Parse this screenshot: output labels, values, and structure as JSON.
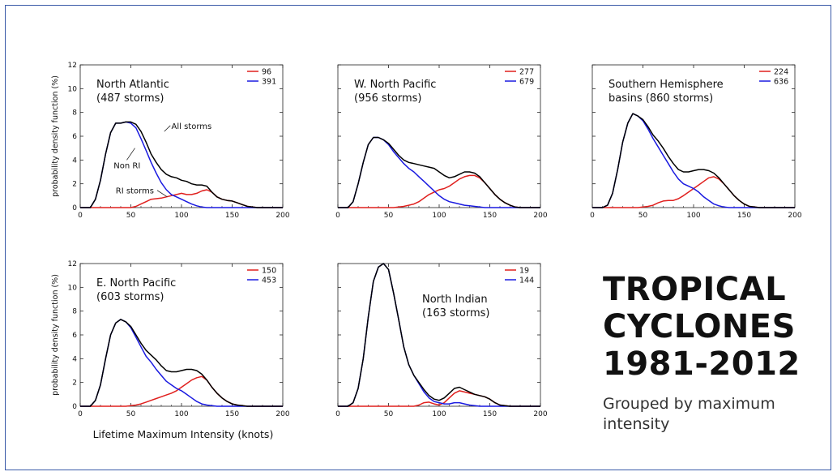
{
  "page": {
    "title_lines": [
      "TROPICAL",
      "CYCLONES",
      "1981-2012"
    ],
    "subtitle": "Grouped by maximum intensity",
    "shared_xlabel": "Lifetime Maximum Intensity (knots)",
    "shared_ylabel": "probability density function (%)"
  },
  "colors": {
    "all": "#000000",
    "ri": "#e0201e",
    "nonri": "#1a1ae0",
    "frame": "#3a5aa8"
  },
  "chart_data": [
    {
      "type": "line",
      "basin": "North Atlantic",
      "storms": "(487 storms)",
      "xlim": [
        0,
        200
      ],
      "ylim": [
        0,
        12
      ],
      "xticks": [
        0,
        50,
        100,
        150,
        200
      ],
      "yticks": [
        0,
        2,
        4,
        6,
        8,
        10,
        12
      ],
      "legend": [
        {
          "key": "ri",
          "label": "96"
        },
        {
          "key": "nonri",
          "label": "391"
        }
      ],
      "annotations": [
        "All storms",
        "Non RI",
        "RI storms"
      ],
      "x": [
        0,
        10,
        15,
        20,
        25,
        30,
        35,
        40,
        45,
        50,
        55,
        60,
        65,
        70,
        75,
        80,
        85,
        90,
        95,
        100,
        105,
        110,
        115,
        120,
        125,
        130,
        135,
        140,
        145,
        150,
        155,
        160,
        165,
        170,
        175,
        180,
        200
      ],
      "series": [
        {
          "key": "all",
          "values": [
            0,
            0,
            0.7,
            2.3,
            4.5,
            6.3,
            7.1,
            7.1,
            7.2,
            7.2,
            7.0,
            6.4,
            5.5,
            4.5,
            3.8,
            3.2,
            2.8,
            2.6,
            2.5,
            2.3,
            2.2,
            2.0,
            1.9,
            1.9,
            1.8,
            1.3,
            0.9,
            0.7,
            0.6,
            0.55,
            0.4,
            0.25,
            0.1,
            0.05,
            0,
            0,
            0
          ]
        },
        {
          "key": "nonri",
          "values": [
            0,
            0,
            0.7,
            2.3,
            4.5,
            6.3,
            7.1,
            7.1,
            7.2,
            7.1,
            6.7,
            5.8,
            4.8,
            3.8,
            2.9,
            2.1,
            1.5,
            1.1,
            0.9,
            0.7,
            0.5,
            0.3,
            0.15,
            0.05,
            0,
            0,
            0,
            0,
            0,
            0,
            0,
            0,
            0,
            0,
            0,
            0,
            0
          ]
        },
        {
          "key": "ri",
          "values": [
            0,
            0,
            0,
            0,
            0,
            0,
            0,
            0,
            0,
            0,
            0.1,
            0.3,
            0.5,
            0.7,
            0.75,
            0.8,
            0.9,
            1.0,
            1.1,
            1.2,
            1.1,
            1.1,
            1.2,
            1.4,
            1.5,
            1.3,
            0.9,
            0.7,
            0.6,
            0.55,
            0.4,
            0.25,
            0.1,
            0.05,
            0,
            0,
            0
          ]
        }
      ]
    },
    {
      "type": "line",
      "basin": "W. North Pacific",
      "storms": "(956 storms)",
      "xlim": [
        0,
        200
      ],
      "ylim": [
        0,
        12
      ],
      "xticks": [
        0,
        50,
        100,
        150,
        200
      ],
      "yticks": [
        0,
        2,
        4,
        6,
        8,
        10,
        12
      ],
      "legend": [
        {
          "key": "ri",
          "label": "277"
        },
        {
          "key": "nonri",
          "label": "679"
        }
      ],
      "annotations": [],
      "x": [
        0,
        10,
        15,
        20,
        25,
        30,
        35,
        40,
        45,
        50,
        55,
        60,
        65,
        70,
        75,
        80,
        85,
        90,
        95,
        100,
        105,
        110,
        115,
        120,
        125,
        130,
        135,
        140,
        145,
        150,
        155,
        160,
        165,
        170,
        175,
        180,
        200
      ],
      "series": [
        {
          "key": "all",
          "values": [
            0,
            0,
            0.5,
            2.0,
            3.8,
            5.3,
            5.9,
            5.9,
            5.7,
            5.4,
            4.9,
            4.4,
            4.0,
            3.8,
            3.7,
            3.6,
            3.5,
            3.4,
            3.3,
            3.0,
            2.7,
            2.5,
            2.6,
            2.8,
            3.0,
            3.0,
            2.9,
            2.6,
            2.1,
            1.6,
            1.1,
            0.7,
            0.4,
            0.2,
            0.05,
            0,
            0
          ]
        },
        {
          "key": "nonri",
          "values": [
            0,
            0,
            0.5,
            2.0,
            3.8,
            5.3,
            5.9,
            5.9,
            5.7,
            5.3,
            4.7,
            4.2,
            3.7,
            3.3,
            3.0,
            2.6,
            2.2,
            1.8,
            1.4,
            1.0,
            0.7,
            0.5,
            0.4,
            0.3,
            0.2,
            0.15,
            0.1,
            0.05,
            0,
            0,
            0,
            0,
            0,
            0,
            0,
            0,
            0
          ]
        },
        {
          "key": "ri",
          "values": [
            0,
            0,
            0,
            0,
            0,
            0,
            0,
            0,
            0,
            0,
            0,
            0.05,
            0.1,
            0.2,
            0.3,
            0.5,
            0.8,
            1.1,
            1.3,
            1.5,
            1.6,
            1.8,
            2.1,
            2.4,
            2.6,
            2.7,
            2.7,
            2.5,
            2.1,
            1.6,
            1.1,
            0.7,
            0.4,
            0.2,
            0.05,
            0,
            0
          ]
        }
      ]
    },
    {
      "type": "line",
      "basin": "Southern Hemisphere basins (860 storms)",
      "storms": "",
      "xlim": [
        0,
        200
      ],
      "ylim": [
        0,
        12
      ],
      "xticks": [
        0,
        50,
        100,
        150,
        200
      ],
      "yticks": [
        0,
        2,
        4,
        6,
        8,
        10,
        12
      ],
      "legend": [
        {
          "key": "ri",
          "label": "224"
        },
        {
          "key": "nonri",
          "label": "636"
        }
      ],
      "annotations": [],
      "x": [
        0,
        10,
        15,
        20,
        25,
        30,
        35,
        40,
        45,
        50,
        55,
        60,
        65,
        70,
        75,
        80,
        85,
        90,
        95,
        100,
        105,
        110,
        115,
        120,
        125,
        130,
        135,
        140,
        145,
        150,
        155,
        160,
        165,
        170,
        175,
        180,
        200
      ],
      "series": [
        {
          "key": "all",
          "values": [
            0,
            0,
            0.2,
            1.2,
            3.2,
            5.5,
            7.1,
            7.9,
            7.7,
            7.4,
            6.8,
            6.1,
            5.6,
            5.0,
            4.3,
            3.7,
            3.2,
            3.0,
            3.0,
            3.1,
            3.2,
            3.2,
            3.1,
            2.9,
            2.5,
            2.0,
            1.5,
            1.0,
            0.6,
            0.3,
            0.1,
            0.05,
            0,
            0,
            0,
            0,
            0
          ]
        },
        {
          "key": "nonri",
          "values": [
            0,
            0,
            0.2,
            1.2,
            3.2,
            5.5,
            7.1,
            7.9,
            7.7,
            7.3,
            6.6,
            5.8,
            5.1,
            4.4,
            3.7,
            3.0,
            2.4,
            2.0,
            1.8,
            1.6,
            1.3,
            0.9,
            0.6,
            0.3,
            0.15,
            0.05,
            0,
            0,
            0,
            0,
            0,
            0,
            0,
            0,
            0,
            0,
            0
          ]
        },
        {
          "key": "ri",
          "values": [
            0,
            0,
            0,
            0,
            0,
            0,
            0,
            0,
            0,
            0.05,
            0.1,
            0.2,
            0.4,
            0.55,
            0.6,
            0.6,
            0.75,
            1.0,
            1.3,
            1.6,
            1.9,
            2.2,
            2.5,
            2.6,
            2.4,
            2.0,
            1.5,
            1.0,
            0.6,
            0.3,
            0.1,
            0.05,
            0,
            0,
            0,
            0,
            0
          ]
        }
      ]
    },
    {
      "type": "line",
      "basin": "E. North Pacific",
      "storms": "(603 storms)",
      "xlim": [
        0,
        200
      ],
      "ylim": [
        0,
        12
      ],
      "xticks": [
        0,
        50,
        100,
        150,
        200
      ],
      "yticks": [
        0,
        2,
        4,
        6,
        8,
        10,
        12
      ],
      "legend": [
        {
          "key": "ri",
          "label": "150"
        },
        {
          "key": "nonri",
          "label": "453"
        }
      ],
      "annotations": [],
      "x": [
        0,
        10,
        15,
        20,
        25,
        30,
        35,
        40,
        45,
        50,
        55,
        60,
        65,
        70,
        75,
        80,
        85,
        90,
        95,
        100,
        105,
        110,
        115,
        120,
        125,
        130,
        135,
        140,
        145,
        150,
        155,
        160,
        165,
        170,
        175,
        180,
        200
      ],
      "series": [
        {
          "key": "all",
          "values": [
            0,
            0,
            0.5,
            1.8,
            4.0,
            6.0,
            7.0,
            7.3,
            7.1,
            6.7,
            6.0,
            5.3,
            4.7,
            4.3,
            3.9,
            3.4,
            3.0,
            2.9,
            2.9,
            3.0,
            3.1,
            3.1,
            3.0,
            2.7,
            2.2,
            1.6,
            1.1,
            0.7,
            0.4,
            0.2,
            0.1,
            0.05,
            0,
            0,
            0,
            0,
            0
          ]
        },
        {
          "key": "nonri",
          "values": [
            0,
            0,
            0.5,
            1.8,
            4.0,
            6.0,
            7.0,
            7.3,
            7.1,
            6.6,
            5.8,
            5.0,
            4.2,
            3.7,
            3.1,
            2.6,
            2.1,
            1.8,
            1.5,
            1.3,
            1.0,
            0.7,
            0.4,
            0.2,
            0.1,
            0.05,
            0,
            0,
            0,
            0,
            0,
            0,
            0,
            0,
            0,
            0,
            0
          ]
        },
        {
          "key": "ri",
          "values": [
            0,
            0,
            0,
            0,
            0,
            0,
            0,
            0,
            0,
            0.05,
            0.1,
            0.2,
            0.35,
            0.5,
            0.65,
            0.8,
            0.95,
            1.1,
            1.3,
            1.6,
            1.9,
            2.2,
            2.4,
            2.5,
            2.2,
            1.6,
            1.1,
            0.7,
            0.4,
            0.2,
            0.1,
            0.05,
            0,
            0,
            0,
            0,
            0
          ]
        }
      ]
    },
    {
      "type": "line",
      "basin": "North Indian",
      "storms": "(163 storms)",
      "xlim": [
        0,
        200
      ],
      "ylim": [
        0,
        12
      ],
      "xticks": [
        0,
        50,
        100,
        150,
        200
      ],
      "yticks": [
        0,
        2,
        4,
        6,
        8,
        10,
        12
      ],
      "legend": [
        {
          "key": "ri",
          "label": "19"
        },
        {
          "key": "nonri",
          "label": "144"
        }
      ],
      "annotations": [],
      "x": [
        0,
        10,
        15,
        20,
        25,
        30,
        35,
        40,
        45,
        50,
        55,
        60,
        65,
        70,
        75,
        80,
        85,
        90,
        95,
        100,
        105,
        110,
        115,
        120,
        125,
        130,
        135,
        140,
        145,
        150,
        155,
        160,
        165,
        170,
        175,
        180,
        200
      ],
      "series": [
        {
          "key": "all",
          "values": [
            0,
            0,
            0.3,
            1.5,
            4.0,
            7.5,
            10.5,
            11.7,
            12.0,
            11.5,
            9.5,
            7.3,
            5.0,
            3.5,
            2.6,
            2.0,
            1.4,
            0.9,
            0.6,
            0.5,
            0.7,
            1.1,
            1.5,
            1.6,
            1.4,
            1.2,
            1.0,
            0.9,
            0.8,
            0.6,
            0.3,
            0.1,
            0.05,
            0,
            0,
            0,
            0
          ]
        },
        {
          "key": "nonri",
          "values": [
            0,
            0,
            0.3,
            1.5,
            4.0,
            7.5,
            10.5,
            11.7,
            12.0,
            11.5,
            9.5,
            7.3,
            5.0,
            3.5,
            2.6,
            1.9,
            1.2,
            0.7,
            0.4,
            0.3,
            0.2,
            0.2,
            0.3,
            0.3,
            0.2,
            0.1,
            0.05,
            0,
            0,
            0,
            0,
            0,
            0,
            0,
            0,
            0,
            0
          ]
        },
        {
          "key": "ri",
          "values": [
            0,
            0,
            0,
            0,
            0,
            0,
            0,
            0,
            0,
            0,
            0,
            0,
            0,
            0,
            0,
            0.1,
            0.3,
            0.35,
            0.2,
            0.1,
            0.3,
            0.7,
            1.1,
            1.3,
            1.2,
            1.1,
            1.0,
            0.9,
            0.8,
            0.6,
            0.3,
            0.1,
            0.05,
            0,
            0,
            0,
            0
          ]
        }
      ]
    }
  ]
}
